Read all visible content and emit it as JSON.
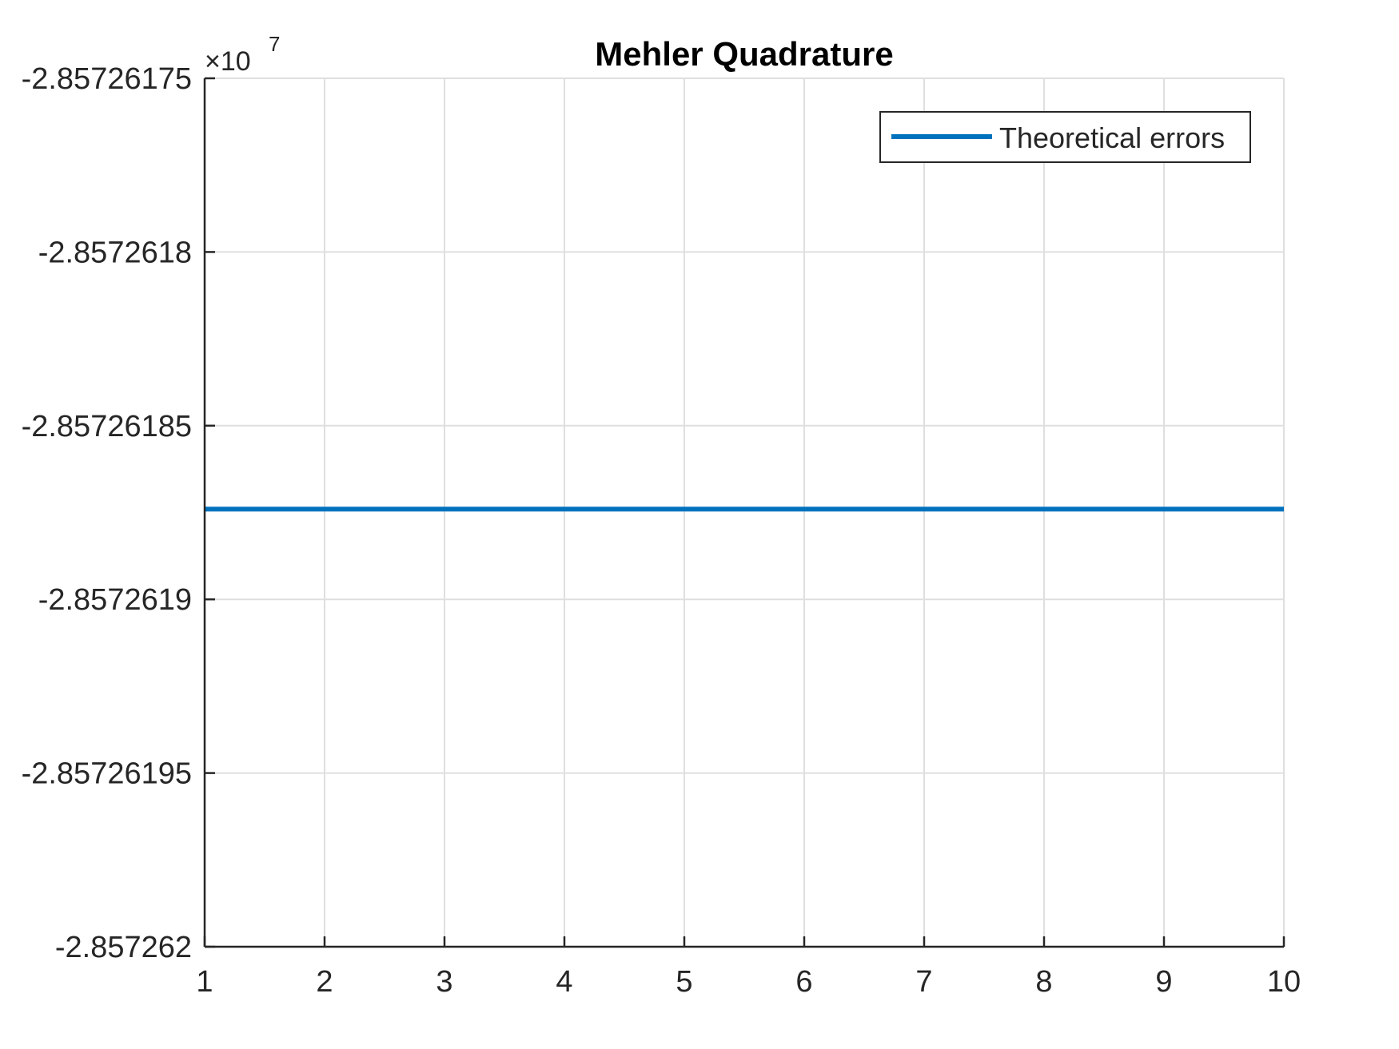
{
  "chart_data": {
    "type": "line",
    "title": "Mehler Quadrature",
    "xlabel": "",
    "ylabel": "",
    "y_exponent_label": "×10",
    "y_exponent_power": "7",
    "xlim": [
      1,
      10
    ],
    "ylim": [
      -2.857262,
      -2.85726175
    ],
    "x_ticks": [
      1,
      2,
      3,
      4,
      5,
      6,
      7,
      8,
      9,
      10
    ],
    "x_tick_labels": [
      "1",
      "2",
      "3",
      "4",
      "5",
      "6",
      "7",
      "8",
      "9",
      "10"
    ],
    "y_ticks": [
      -2.85726175,
      -2.8572618,
      -2.85726185,
      -2.8572619,
      -2.85726195,
      -2.857262
    ],
    "y_tick_labels": [
      "-2.85726175",
      "-2.8572618",
      "-2.85726185",
      "-2.8572619",
      "-2.85726195",
      "-2.857262"
    ],
    "grid": true,
    "legend_position": "top-right",
    "series": [
      {
        "name": "Theoretical errors",
        "color": "#0072BD",
        "x": [
          1,
          2,
          3,
          4,
          5,
          6,
          7,
          8,
          9,
          10
        ],
        "y": [
          -2.857261874,
          -2.857261874,
          -2.857261874,
          -2.857261874,
          -2.857261874,
          -2.857261874,
          -2.857261874,
          -2.857261874,
          -2.857261874,
          -2.857261874
        ]
      }
    ]
  }
}
